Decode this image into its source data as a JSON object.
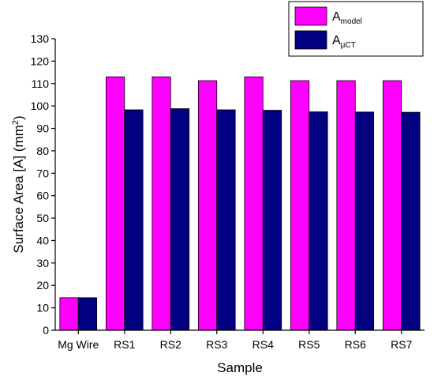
{
  "chart_data": {
    "type": "bar",
    "categories": [
      "Mg Wire",
      "RS1",
      "RS2",
      "RS3",
      "RS4",
      "RS5",
      "RS6",
      "RS7"
    ],
    "series": [
      {
        "name": "A",
        "subscript": "model",
        "color": "#ff00ff",
        "values": [
          14.5,
          113,
          113,
          111.3,
          113,
          111.3,
          111.3,
          111.3
        ]
      },
      {
        "name": "A",
        "subscript": "μCT",
        "color": "#000080",
        "values": [
          14.5,
          98.3,
          98.8,
          98.3,
          98.1,
          97.4,
          97.3,
          97.2
        ]
      }
    ],
    "xlabel": "Sample",
    "ylabel_main": "Surface Area [A] (mm",
    "ylabel_sup": "2",
    "ylabel_end": ")",
    "ylim": [
      0,
      130
    ],
    "yticks": [
      0,
      10,
      20,
      30,
      40,
      50,
      60,
      70,
      80,
      90,
      100,
      110,
      120,
      130
    ],
    "grid": false,
    "legend_position": "top-right"
  }
}
